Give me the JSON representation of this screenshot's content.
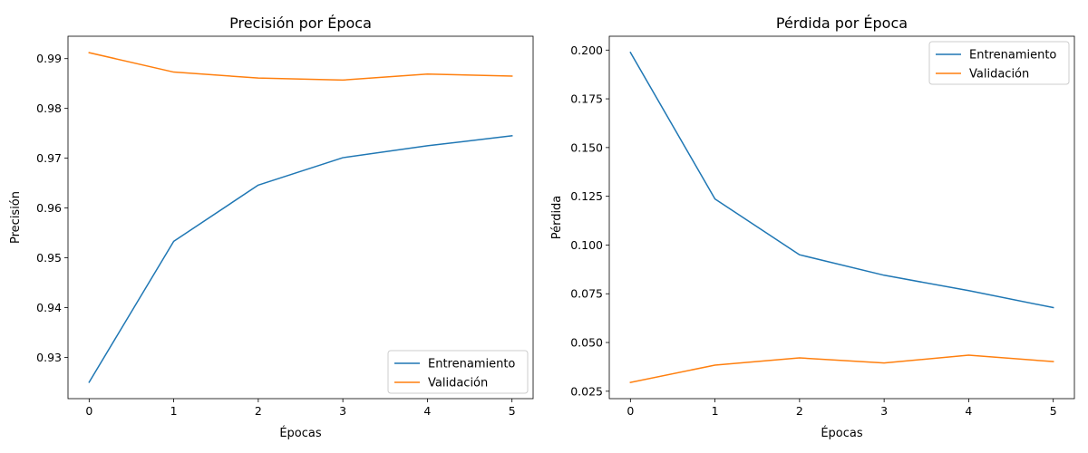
{
  "chart_data": [
    {
      "type": "line",
      "title": "Precisión por Época",
      "xlabel": "Épocas",
      "ylabel": "Precisión",
      "x": [
        0,
        1,
        2,
        3,
        4,
        5
      ],
      "xticks": [
        "0",
        "1",
        "2",
        "3",
        "4",
        "5"
      ],
      "yticks": [
        "0.93",
        "0.94",
        "0.95",
        "0.96",
        "0.97",
        "0.98",
        "0.99"
      ],
      "xlim": [
        -0.25,
        5.25
      ],
      "ylim": [
        0.9217,
        0.9945
      ],
      "grid": false,
      "legend": "lower-right",
      "series": [
        {
          "name": "Entrenamiento",
          "color": "#1f77b4",
          "values": [
            0.925,
            0.9533,
            0.9646,
            0.9701,
            0.9725,
            0.9745
          ]
        },
        {
          "name": "Validación",
          "color": "#ff7f0e",
          "values": [
            0.9912,
            0.9873,
            0.9861,
            0.9857,
            0.9869,
            0.9865
          ]
        }
      ]
    },
    {
      "type": "line",
      "title": "Pérdida por Época",
      "xlabel": "Épocas",
      "ylabel": "Pérdida",
      "x": [
        0,
        1,
        2,
        3,
        4,
        5
      ],
      "xticks": [
        "0",
        "1",
        "2",
        "3",
        "4",
        "5"
      ],
      "yticks": [
        "0.025",
        "0.050",
        "0.075",
        "0.100",
        "0.125",
        "0.150",
        "0.175",
        "0.200"
      ],
      "xlim": [
        -0.25,
        5.25
      ],
      "ylim": [
        0.0212,
        0.2071
      ],
      "grid": false,
      "legend": "upper-right",
      "series": [
        {
          "name": "Entrenamiento",
          "color": "#1f77b4",
          "values": [
            0.1988,
            0.1236,
            0.095,
            0.0845,
            0.0766,
            0.0679
          ]
        },
        {
          "name": "Validación",
          "color": "#ff7f0e",
          "values": [
            0.0295,
            0.0384,
            0.0421,
            0.0395,
            0.0435,
            0.0402
          ]
        }
      ]
    }
  ]
}
